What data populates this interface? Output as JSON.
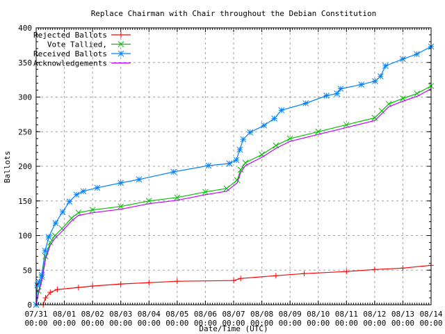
{
  "chart_data": {
    "type": "line",
    "title": "Replace Chairman with Chair throughout the Debian Constitution",
    "xlabel": "Date/Time (UTC)",
    "ylabel": "Ballots",
    "xlim": [
      "07/31 00:00",
      "08/14 00:00"
    ],
    "ylim": [
      0,
      400
    ],
    "yticks": [
      0,
      50,
      100,
      150,
      200,
      250,
      300,
      350,
      400
    ],
    "xticks": [
      {
        "date": "07/31",
        "time": "00:00"
      },
      {
        "date": "08/01",
        "time": "00:00"
      },
      {
        "date": "08/02",
        "time": "00:00"
      },
      {
        "date": "08/03",
        "time": "00:00"
      },
      {
        "date": "08/04",
        "time": "00:00"
      },
      {
        "date": "08/05",
        "time": "00:00"
      },
      {
        "date": "08/06",
        "time": "00:00"
      },
      {
        "date": "08/07",
        "time": "00:00"
      },
      {
        "date": "08/08",
        "time": "00:00"
      },
      {
        "date": "08/09",
        "time": "00:00"
      },
      {
        "date": "08/10",
        "time": "00:00"
      },
      {
        "date": "08/11",
        "time": "00:00"
      },
      {
        "date": "08/12",
        "time": "00:00"
      },
      {
        "date": "08/13",
        "time": "00:00"
      },
      {
        "date": "08/14",
        "time": "00:00"
      }
    ],
    "grid": true,
    "legend_position": "top-left",
    "series": [
      {
        "name": "Rejected Ballots",
        "color": "#ff0000",
        "marker": "plus",
        "points": [
          [
            "07/31 06:00",
            0
          ],
          [
            "07/31 08:00",
            10
          ],
          [
            "07/31 12:00",
            18
          ],
          [
            "07/31 18:00",
            22
          ],
          [
            "08/01 12:00",
            25
          ],
          [
            "08/02 00:00",
            27
          ],
          [
            "08/03 00:00",
            30
          ],
          [
            "08/04 00:00",
            32
          ],
          [
            "08/05 00:00",
            34
          ],
          [
            "08/07 00:00",
            35
          ],
          [
            "08/07 06:00",
            38
          ],
          [
            "08/08 12:00",
            42
          ],
          [
            "08/09 12:00",
            45
          ],
          [
            "08/11 00:00",
            48
          ],
          [
            "08/12 00:00",
            51
          ],
          [
            "08/13 00:00",
            53
          ],
          [
            "08/14 00:00",
            57
          ]
        ]
      },
      {
        "name": "Vote Tallied,",
        "color": "#00c000",
        "marker": "cross",
        "points": [
          [
            "07/31 00:00",
            0
          ],
          [
            "07/31 02:00",
            20
          ],
          [
            "07/31 05:00",
            40
          ],
          [
            "07/31 08:00",
            70
          ],
          [
            "07/31 12:00",
            90
          ],
          [
            "07/31 16:00",
            100
          ],
          [
            "07/31 22:00",
            110
          ],
          [
            "08/01 06:00",
            125
          ],
          [
            "08/01 12:00",
            133
          ],
          [
            "08/02 00:00",
            137
          ],
          [
            "08/03 00:00",
            142
          ],
          [
            "08/04 00:00",
            150
          ],
          [
            "08/05 00:00",
            155
          ],
          [
            "08/06 00:00",
            163
          ],
          [
            "08/06 18:00",
            168
          ],
          [
            "08/07 03:00",
            180
          ],
          [
            "08/07 06:00",
            195
          ],
          [
            "08/07 10:00",
            205
          ],
          [
            "08/08 00:00",
            217
          ],
          [
            "08/08 12:00",
            230
          ],
          [
            "08/09 00:00",
            240
          ],
          [
            "08/10 00:00",
            250
          ],
          [
            "08/11 00:00",
            260
          ],
          [
            "08/12 00:00",
            270
          ],
          [
            "08/12 06:00",
            280
          ],
          [
            "08/12 12:00",
            290
          ],
          [
            "08/13 00:00",
            298
          ],
          [
            "08/13 12:00",
            305
          ],
          [
            "08/14 00:00",
            316
          ]
        ]
      },
      {
        "name": "Received Ballots",
        "color": "#0080ff",
        "marker": "star",
        "points": [
          [
            "07/31 00:00",
            0
          ],
          [
            "07/31 01:00",
            28
          ],
          [
            "07/31 02:30",
            33
          ],
          [
            "07/31 04:45",
            43
          ],
          [
            "07/31 07:40",
            78
          ],
          [
            "07/31 10:40",
            98
          ],
          [
            "07/31 16:30",
            118
          ],
          [
            "07/31 22:30",
            134
          ],
          [
            "08/01 04:20",
            149
          ],
          [
            "08/01 10:20",
            159
          ],
          [
            "08/01 16:10",
            164
          ],
          [
            "08/02 04:00",
            169
          ],
          [
            "08/03 00:00",
            176
          ],
          [
            "08/03 15:30",
            181
          ],
          [
            "08/04 21:00",
            192
          ],
          [
            "08/06 02:40",
            201
          ],
          [
            "08/06 20:20",
            204
          ],
          [
            "08/07 02:20",
            209
          ],
          [
            "08/07 05:15",
            224
          ],
          [
            "08/07 08:10",
            239
          ],
          [
            "08/07 14:00",
            249
          ],
          [
            "08/08 01:50",
            259
          ],
          [
            "08/08 10:40",
            269
          ],
          [
            "08/08 16:40",
            281
          ],
          [
            "08/09 13:20",
            291
          ],
          [
            "08/10 07:00",
            302
          ],
          [
            "08/10 16:00",
            305
          ],
          [
            "08/10 19:00",
            312
          ],
          [
            "08/11 12:40",
            318
          ],
          [
            "08/12 00:20",
            323
          ],
          [
            "08/12 05:00",
            330
          ],
          [
            "08/12 09:10",
            345
          ],
          [
            "08/13 00:00",
            355
          ],
          [
            "08/13 11:50",
            362
          ],
          [
            "08/14 00:00",
            373
          ]
        ]
      },
      {
        "name": "Acknowledgements",
        "color": "#c000ff",
        "marker": "none",
        "points": [
          [
            "07/31 00:00",
            0
          ],
          [
            "07/31 02:00",
            17
          ],
          [
            "07/31 05:00",
            36
          ],
          [
            "07/31 08:00",
            66
          ],
          [
            "07/31 12:00",
            86
          ],
          [
            "07/31 16:00",
            96
          ],
          [
            "07/31 22:00",
            106
          ],
          [
            "08/01 06:00",
            121
          ],
          [
            "08/01 12:00",
            129
          ],
          [
            "08/02 00:00",
            133
          ],
          [
            "08/03 00:00",
            138
          ],
          [
            "08/04 00:00",
            146
          ],
          [
            "08/05 00:00",
            151
          ],
          [
            "08/06 00:00",
            159
          ],
          [
            "08/06 18:00",
            164
          ],
          [
            "08/07 03:00",
            176
          ],
          [
            "08/07 06:00",
            191
          ],
          [
            "08/07 10:00",
            201
          ],
          [
            "08/08 00:00",
            213
          ],
          [
            "08/08 12:00",
            226
          ],
          [
            "08/09 00:00",
            236
          ],
          [
            "08/10 00:00",
            246
          ],
          [
            "08/11 00:00",
            256
          ],
          [
            "08/12 00:00",
            266
          ],
          [
            "08/12 06:00",
            276
          ],
          [
            "08/12 12:00",
            286
          ],
          [
            "08/13 00:00",
            294
          ],
          [
            "08/13 12:00",
            301
          ],
          [
            "08/14 00:00",
            312
          ]
        ]
      }
    ]
  }
}
